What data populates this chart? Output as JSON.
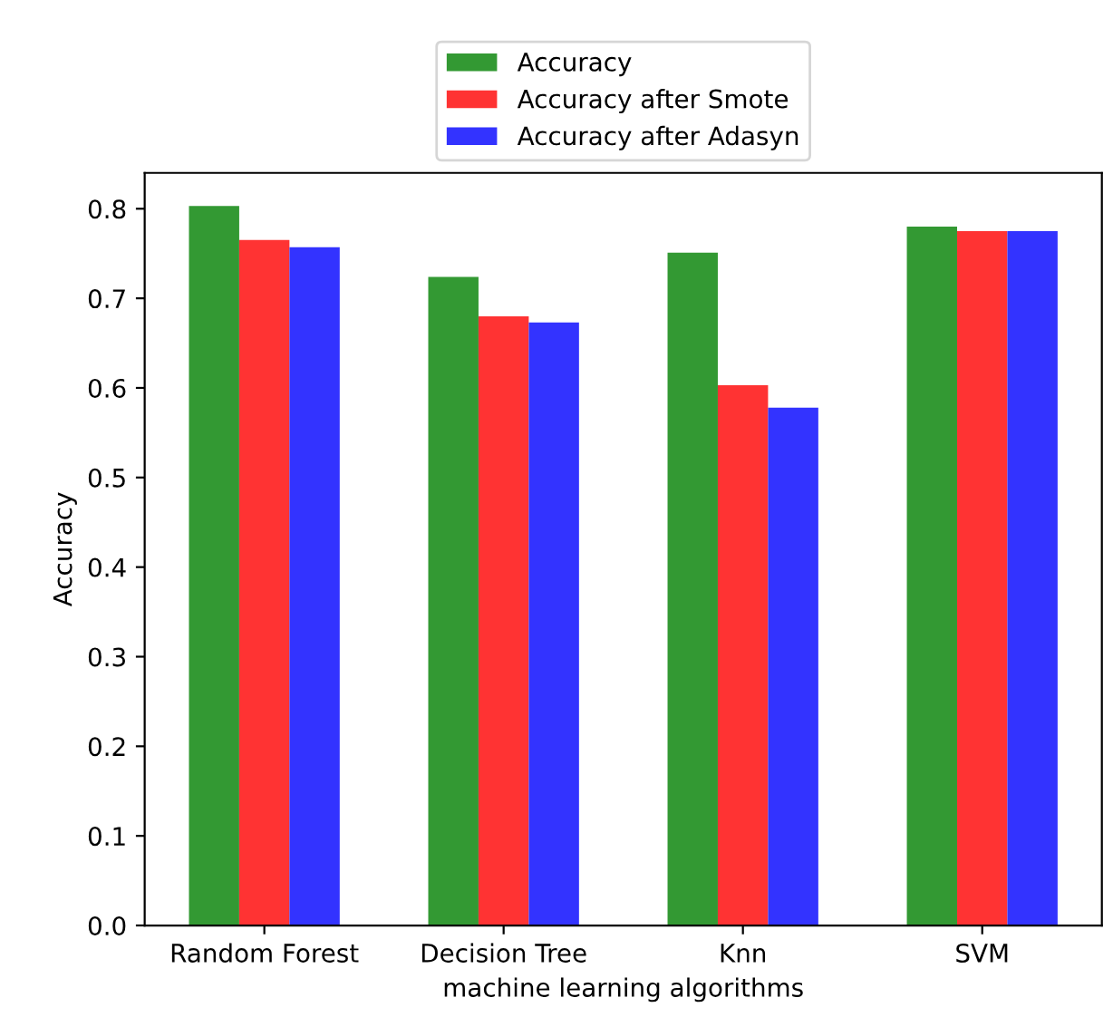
{
  "chart_data": {
    "type": "bar",
    "xlabel": "machine learning algorithms",
    "ylabel": "Accuracy",
    "categories": [
      "Random Forest",
      "Decision Tree",
      "Knn",
      "SVM"
    ],
    "series": [
      {
        "name": "Accuracy",
        "color": "#339933",
        "values": [
          0.803,
          0.724,
          0.751,
          0.78
        ]
      },
      {
        "name": "Accuracy after Smote",
        "color": "#ff3333",
        "values": [
          0.765,
          0.68,
          0.603,
          0.775
        ]
      },
      {
        "name": "Accuracy after Adasyn",
        "color": "#3333ff",
        "values": [
          0.757,
          0.673,
          0.578,
          0.775
        ]
      }
    ],
    "ylim": [
      0,
      0.84
    ],
    "yticks": [
      {
        "value": 0,
        "label": "0.0"
      },
      0.1,
      0.2,
      0.3,
      0.4,
      0.5,
      0.6,
      0.7,
      0.8
    ],
    "legend": "top",
    "grid": false
  }
}
